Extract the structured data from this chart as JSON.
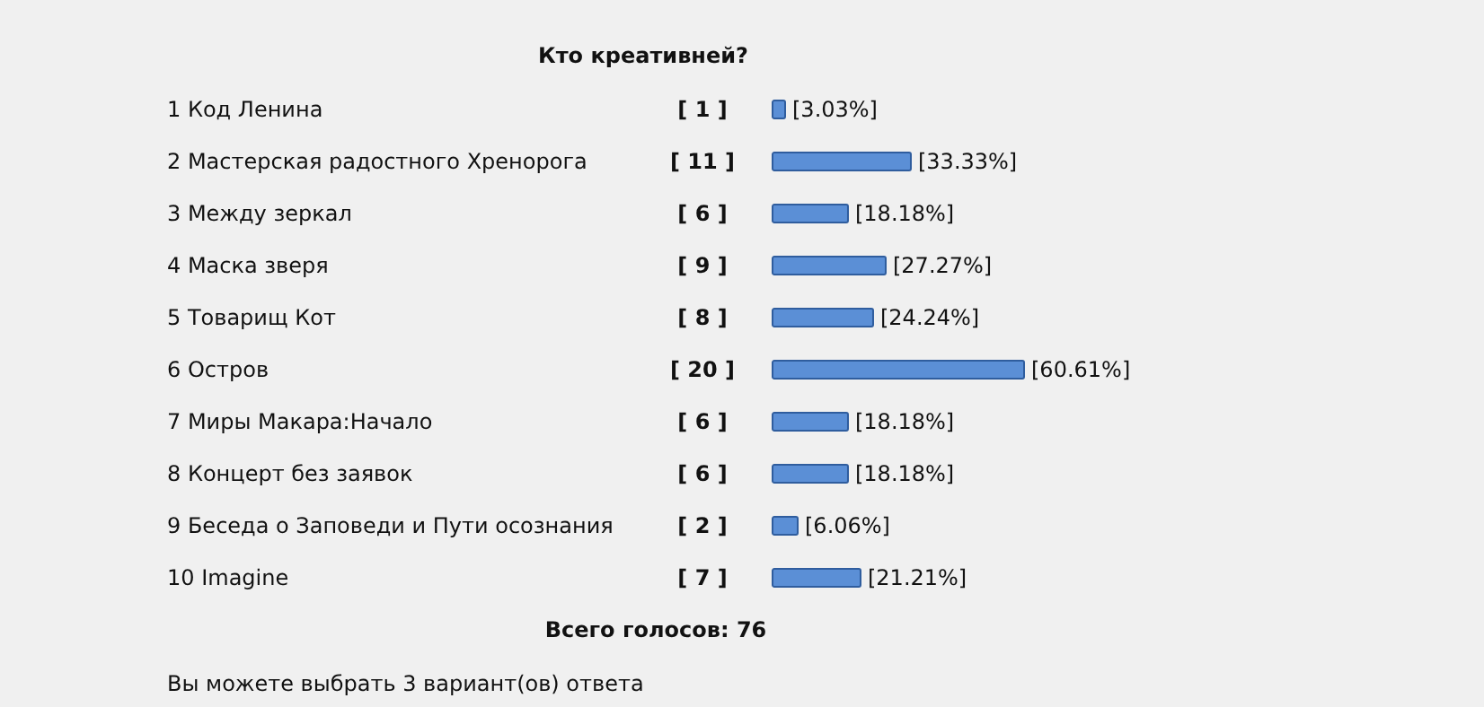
{
  "chart_data": {
    "type": "bar",
    "orientation": "horizontal",
    "title": "Кто креативней?",
    "categories": [
      "1 Код Ленина",
      "2 Мастерская радостного Хренорога",
      "3 Между зеркал",
      "4 Маска зверя",
      "5 Товарищ Кот",
      "6 Остров",
      "7 Миры Макара:Начало",
      "8 Концерт без заявок",
      "9 Беседа о Заповеди и Пути осознания",
      "10 Imagine"
    ],
    "values": [
      3.03,
      33.33,
      18.18,
      27.27,
      24.24,
      60.61,
      18.18,
      18.18,
      6.06,
      21.21
    ],
    "color": "#5b8fd6",
    "value_labels": [
      "[3.03%]",
      "[33.33%]",
      "[18.18%]",
      "[27.27%]",
      "[24.24%]",
      "[60.61%]",
      "[18.18%]",
      "[18.18%]",
      "[6.06%]",
      "[21.21%]"
    ],
    "annotations": [
      "[ 1 ]",
      "[ 11 ]",
      "[ 6 ]",
      "[ 9 ]",
      "[ 8 ]",
      "[ 20 ]",
      "[ 6 ]",
      "[ 6 ]",
      "[ 2 ]",
      "[ 7 ]",
      "Всего голосов: 76",
      "Вы можете выбрать 3 вариант(ов) ответа"
    ]
  }
}
